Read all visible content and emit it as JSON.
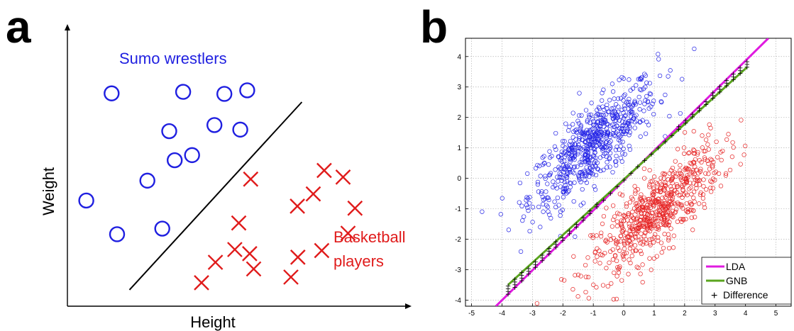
{
  "panel_a_label": "a",
  "panel_b_label": "b",
  "chart_data": [
    {
      "type": "scatter",
      "title": "",
      "xlabel": "Height",
      "ylabel": "Weight",
      "series": [
        {
          "name": "Sumo wrestlers",
          "marker": "circle",
          "color": "#1f1fe0",
          "x": [
            0.89,
            2.33,
            2.05,
            0.38,
            1.0,
            1.61,
            2.16,
            2.96,
            3.48,
            2.51,
            3.62,
            3.16,
            1.91
          ],
          "y": [
            4.17,
            4.2,
            3.43,
            2.07,
            1.41,
            2.46,
            2.86,
            3.55,
            3.46,
            2.96,
            4.23,
            4.16,
            1.52
          ]
        },
        {
          "name": "Basketball players",
          "marker": "x",
          "color": "#e01b1b",
          "x": [
            3.69,
            5.79,
            4.95,
            5.65,
            4.5,
            5.17,
            5.55,
            4.63,
            3.37,
            3.75,
            3.67,
            3.45,
            2.98,
            2.7,
            5.12,
            4.64
          ],
          "y": [
            2.49,
            1.92,
            2.2,
            1.43,
            0.57,
            2.66,
            2.53,
            1.96,
            1.11,
            0.73,
            1.03,
            1.63,
            0.86,
            0.46,
            1.09,
            0.96
          ]
        }
      ],
      "boundary": {
        "x": [
          1.25,
          4.72
        ],
        "y": [
          0.32,
          4.0
        ]
      }
    },
    {
      "type": "scatter",
      "title": "",
      "xlabel": "",
      "ylabel": "",
      "xlim": [
        -5.2,
        5.5
      ],
      "ylim": [
        -4.2,
        4.6
      ],
      "x_ticks": [
        -5,
        -4,
        -3,
        -2,
        -1,
        0,
        1,
        2,
        3,
        4,
        5
      ],
      "y_ticks": [
        4,
        3,
        2,
        1,
        0,
        -1,
        -2,
        -3,
        -4
      ],
      "grid": true,
      "legend_position": "bottom-right",
      "clusters": [
        {
          "label": "class 1 (blue circles)",
          "color": "#2424e6",
          "center": [
            -1,
            1.1
          ],
          "count": 650,
          "std": [
            1.05,
            1.05
          ],
          "corr": 0.8
        },
        {
          "label": "class 2 (red circles)",
          "color": "#e62424",
          "center": [
            1.1,
            -1.05
          ],
          "count": 650,
          "std": [
            1.05,
            1.05
          ],
          "corr": 0.8
        }
      ],
      "series": [
        {
          "name": "LDA",
          "color": "#e01be0",
          "x": [
            -4.2,
            4.75
          ],
          "y": [
            -4.2,
            4.6
          ]
        },
        {
          "name": "GNB",
          "color": "#5aa51e",
          "x": [
            -3.8,
            4.05
          ],
          "y": [
            -3.5,
            3.65
          ]
        },
        {
          "name": "Difference",
          "color": "#000000",
          "marker": "+",
          "x_range": [
            -3.8,
            4.05
          ],
          "count": 36
        }
      ]
    }
  ],
  "legend_b": {
    "lda": "LDA",
    "gnb": "GNB",
    "diff_symbol": "+",
    "diff": "Difference"
  }
}
